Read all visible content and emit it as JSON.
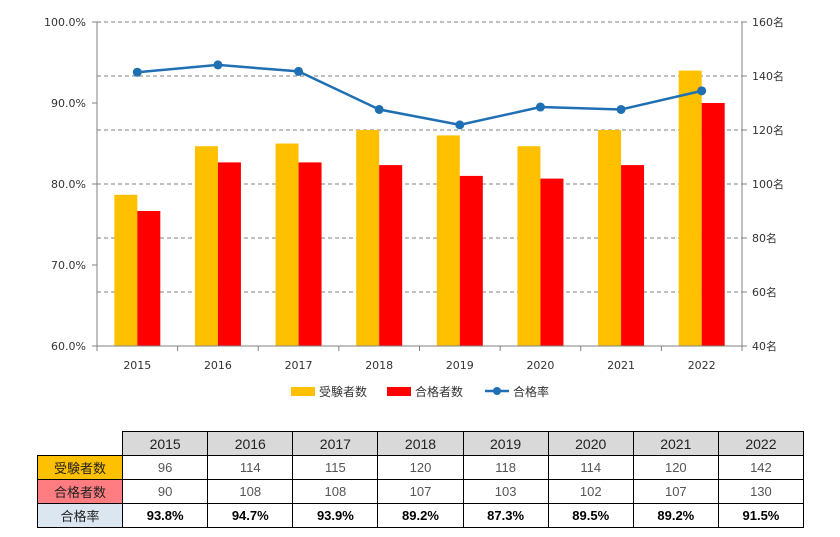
{
  "colors": {
    "applicants": "#FFC000",
    "passers": "#FF0000",
    "rate": "#1F6FB3",
    "grid": "#808080",
    "axis": "#808080",
    "text": "#333333"
  },
  "chart_data": {
    "type": "bar",
    "title": "",
    "categories": [
      "2015",
      "2016",
      "2017",
      "2018",
      "2019",
      "2020",
      "2021",
      "2022"
    ],
    "series": [
      {
        "name": "受験者数",
        "kind": "bar",
        "axis": "right",
        "values": [
          96,
          114,
          115,
          120,
          118,
          114,
          120,
          142
        ]
      },
      {
        "name": "合格者数",
        "kind": "bar",
        "axis": "right",
        "values": [
          90,
          108,
          108,
          107,
          103,
          102,
          107,
          130
        ]
      },
      {
        "name": "合格率",
        "kind": "line",
        "axis": "left",
        "values": [
          93.8,
          94.7,
          93.9,
          89.2,
          87.3,
          89.5,
          89.2,
          91.5
        ]
      }
    ],
    "left_axis": {
      "ylim": [
        60,
        100
      ],
      "ticks": [
        "60.0%",
        "70.0%",
        "80.0%",
        "90.0%",
        "100.0%"
      ]
    },
    "right_axis": {
      "ylim": [
        40,
        160
      ],
      "ticks": [
        "40名",
        "60名",
        "80名",
        "100名",
        "120名",
        "140名",
        "160名"
      ]
    },
    "grid": true,
    "legend": [
      "受験者数",
      "合格者数",
      "合格率"
    ],
    "legend_position": "bottom"
  },
  "table": {
    "years": [
      "2015",
      "2016",
      "2017",
      "2018",
      "2019",
      "2020",
      "2021",
      "2022"
    ],
    "rows": [
      {
        "label": "受験者数",
        "values": [
          "96",
          "114",
          "115",
          "120",
          "118",
          "114",
          "120",
          "142"
        ]
      },
      {
        "label": "合格者数",
        "values": [
          "90",
          "108",
          "108",
          "107",
          "103",
          "102",
          "107",
          "130"
        ]
      },
      {
        "label": "合格率",
        "values": [
          "93.8%",
          "94.7%",
          "93.9%",
          "89.2%",
          "87.3%",
          "89.5%",
          "89.2%",
          "91.5%"
        ]
      }
    ]
  }
}
